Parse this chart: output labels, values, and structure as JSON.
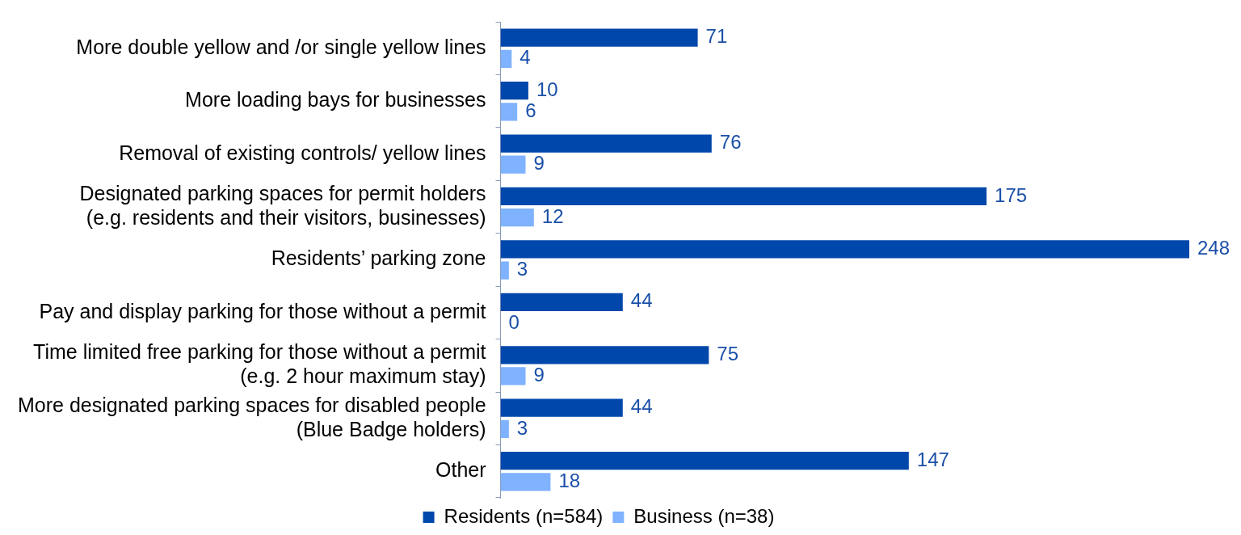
{
  "chart_data": {
    "type": "bar",
    "orientation": "horizontal",
    "data_labels": true,
    "legend": "bottom",
    "categories": [
      "More double yellow and /or single yellow lines",
      "More loading bays for businesses",
      "Removal of existing controls/ yellow lines",
      "Designated parking spaces for permit holders\n(e.g. residents and their visitors, businesses)",
      "Residents’ parking zone",
      "Pay and display parking for those without a permit",
      "Time limited free parking for those without a permit\n(e.g. 2 hour maximum stay)",
      "More designated parking spaces for disabled people\n(Blue Badge holders)",
      "Other"
    ],
    "series": [
      {
        "name": "Residents (n=584)",
        "color": "#0047ab",
        "values": [
          71,
          10,
          76,
          175,
          248,
          44,
          75,
          44,
          147
        ]
      },
      {
        "name": "Business (n=38)",
        "color": "#7fb2ff",
        "values": [
          4,
          6,
          9,
          12,
          3,
          0,
          9,
          3,
          18
        ]
      }
    ]
  }
}
